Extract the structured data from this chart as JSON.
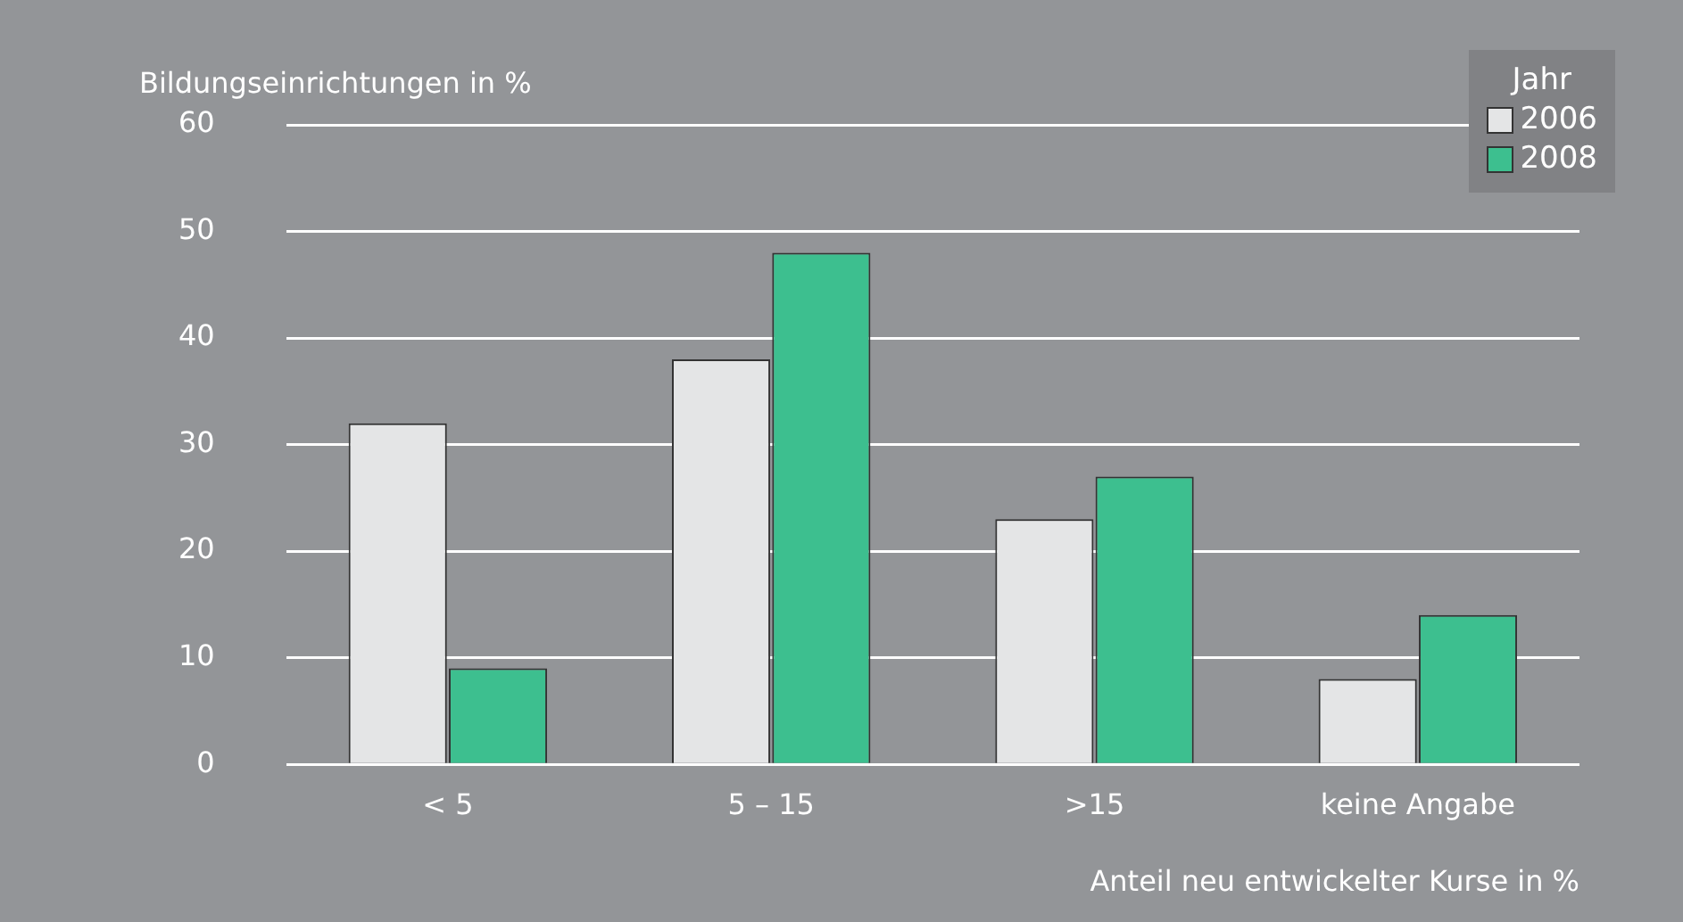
{
  "chart_data": {
    "type": "bar",
    "ylabel": "Bildungseinrichtungen in %",
    "xlabel": "Anteil neu entwickelter Kurse in %",
    "legend_title": "Jahr",
    "categories": [
      "< 5",
      "5 – 15",
      ">15",
      "keine Angabe"
    ],
    "series": [
      {
        "name": "2006",
        "color": "#e4e5e6",
        "values": [
          32,
          38,
          23,
          8
        ]
      },
      {
        "name": "2008",
        "color": "#3dbf8f",
        "values": [
          9,
          48,
          27,
          14
        ]
      }
    ],
    "ylim": [
      0,
      60
    ],
    "yticks": [
      0,
      10,
      20,
      30,
      40,
      50,
      60
    ],
    "grid": "y",
    "legend": "top right"
  }
}
